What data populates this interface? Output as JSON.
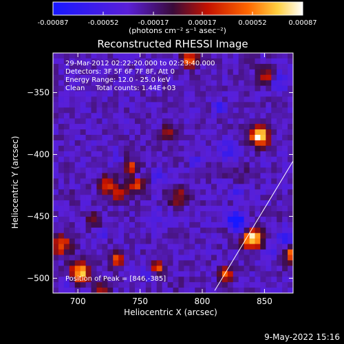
{
  "chart_data": {
    "type": "heatmap",
    "title": "Reconstructed RHESSI Image",
    "xlabel": "Heliocentric X (arcsec)",
    "ylabel": "Heliocentric Y (arcsec)",
    "xlim": [
      680,
      873
    ],
    "ylim": [
      -512,
      -318
    ],
    "x_ticks": [
      700,
      750,
      800,
      850
    ],
    "y_ticks": [
      -350,
      -400,
      -450,
      -500
    ],
    "colorbar": {
      "range": [
        -0.00087,
        0.00087
      ],
      "tick_values": [
        -0.00087,
        -0.00052,
        -0.00017,
        0.00017,
        0.00052,
        0.00087
      ],
      "tick_labels": [
        "-0.00087",
        "-0.00052",
        "-0.00017",
        "0.00017",
        "0.00052",
        "0.00087"
      ],
      "unit_label": "(photons cm⁻² s⁻¹ asec⁻²)"
    },
    "annotations": [
      "29-Mar-2012 02:22:20.000 to 02:23:40.000",
      "Detectors: 3F 5F 6F 7F 8F, Att 0",
      "Energy Range: 12.0 - 25.0 keV",
      "Clean     Total counts: 1.44E+03"
    ],
    "peak_label": "Position of Peak = [846,-385]",
    "peak": {
      "x": 846,
      "y": -385
    },
    "limb_line": {
      "x": [
        810,
        875
      ],
      "y": -510,
      "y_end": -402
    }
  },
  "footer": {
    "date": "9-May-2022 15:16"
  }
}
